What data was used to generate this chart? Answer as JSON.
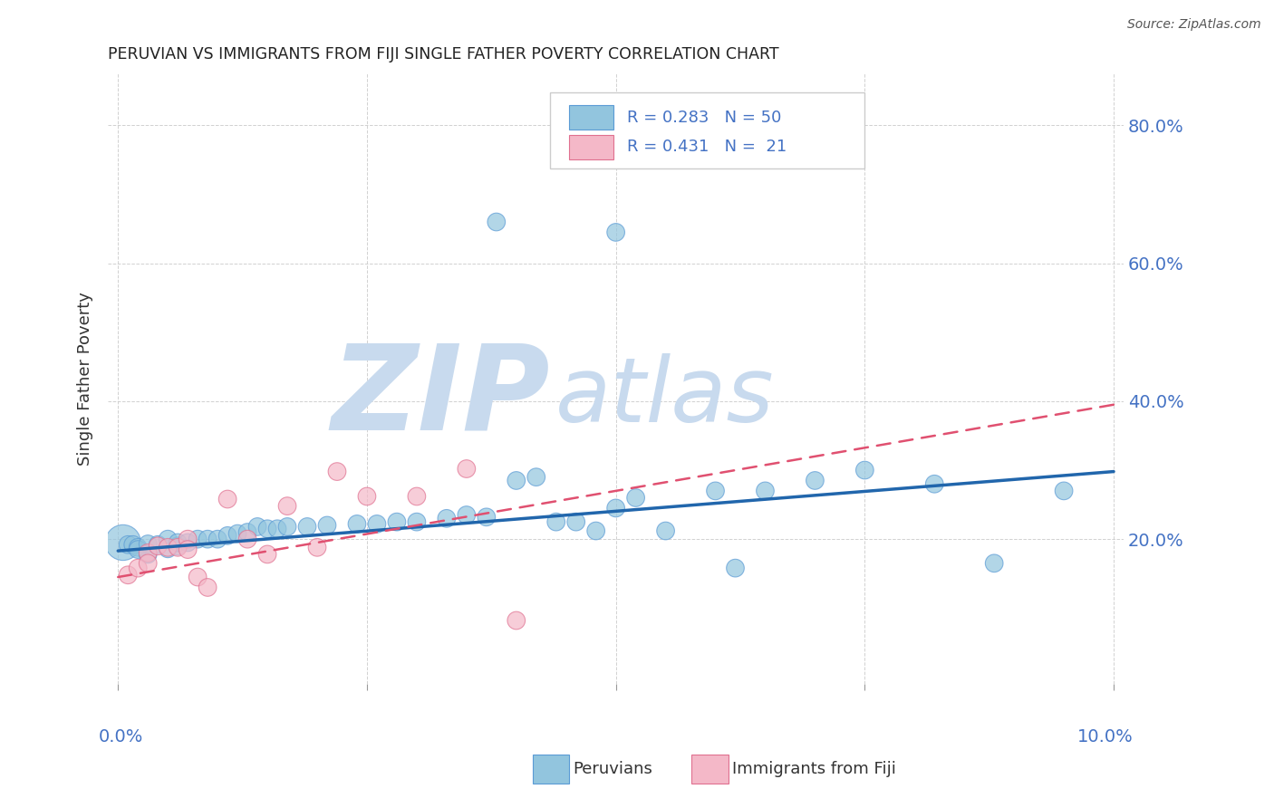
{
  "title": "PERUVIAN VS IMMIGRANTS FROM FIJI SINGLE FATHER POVERTY CORRELATION CHART",
  "source": "Source: ZipAtlas.com",
  "ylabel": "Single Father Poverty",
  "y_tick_labels": [
    "20.0%",
    "40.0%",
    "60.0%",
    "80.0%"
  ],
  "y_tick_values": [
    0.2,
    0.4,
    0.6,
    0.8
  ],
  "xlim": [
    -0.001,
    0.101
  ],
  "ylim": [
    -0.01,
    0.875
  ],
  "blue_color": "#92c5de",
  "blue_edge_color": "#5b9bd5",
  "pink_color": "#f4b8c8",
  "pink_edge_color": "#e07090",
  "trend_blue_color": "#2166ac",
  "trend_pink_color": "#e05070",
  "watermark_zip_color": "#c8daee",
  "watermark_atlas_color": "#c8daee",
  "legend_text_color": "#4472c4",
  "legend_pink_text_color": "#e07090",
  "blue_r": "0.283",
  "blue_n": "50",
  "pink_r": "0.431",
  "pink_n": "21",
  "blue_x": [
    0.0005,
    0.001,
    0.0015,
    0.002,
    0.002,
    0.003,
    0.003,
    0.004,
    0.005,
    0.005,
    0.006,
    0.006,
    0.007,
    0.008,
    0.009,
    0.01,
    0.011,
    0.012,
    0.013,
    0.014,
    0.015,
    0.016,
    0.017,
    0.019,
    0.021,
    0.024,
    0.026,
    0.028,
    0.03,
    0.033,
    0.035,
    0.037,
    0.04,
    0.042,
    0.044,
    0.046,
    0.048,
    0.05,
    0.038,
    0.052,
    0.055,
    0.05,
    0.06,
    0.062,
    0.065,
    0.07,
    0.075,
    0.082,
    0.088,
    0.095
  ],
  "blue_y": [
    0.195,
    0.192,
    0.192,
    0.188,
    0.185,
    0.193,
    0.178,
    0.192,
    0.186,
    0.2,
    0.19,
    0.195,
    0.195,
    0.2,
    0.2,
    0.2,
    0.205,
    0.208,
    0.21,
    0.218,
    0.215,
    0.215,
    0.218,
    0.218,
    0.22,
    0.222,
    0.222,
    0.225,
    0.225,
    0.23,
    0.235,
    0.232,
    0.285,
    0.29,
    0.225,
    0.225,
    0.212,
    0.245,
    0.66,
    0.26,
    0.212,
    0.645,
    0.27,
    0.158,
    0.27,
    0.285,
    0.3,
    0.28,
    0.165,
    0.27
  ],
  "blue_size_main": 800,
  "blue_size_regular": 200,
  "pink_x": [
    0.001,
    0.002,
    0.003,
    0.003,
    0.004,
    0.005,
    0.006,
    0.007,
    0.007,
    0.008,
    0.009,
    0.011,
    0.013,
    0.015,
    0.017,
    0.02,
    0.022,
    0.025,
    0.03,
    0.035,
    0.04
  ],
  "pink_y": [
    0.148,
    0.158,
    0.18,
    0.165,
    0.19,
    0.188,
    0.188,
    0.2,
    0.185,
    0.145,
    0.13,
    0.258,
    0.2,
    0.178,
    0.248,
    0.188,
    0.298,
    0.262,
    0.262,
    0.302,
    0.082
  ],
  "pink_size": 200,
  "blue_trend_x0": 0.0,
  "blue_trend_y0": 0.183,
  "blue_trend_x1": 0.1,
  "blue_trend_y1": 0.298,
  "pink_trend_x0": 0.0,
  "pink_trend_y0": 0.145,
  "pink_trend_x1": 0.1,
  "pink_trend_y1": 0.395
}
